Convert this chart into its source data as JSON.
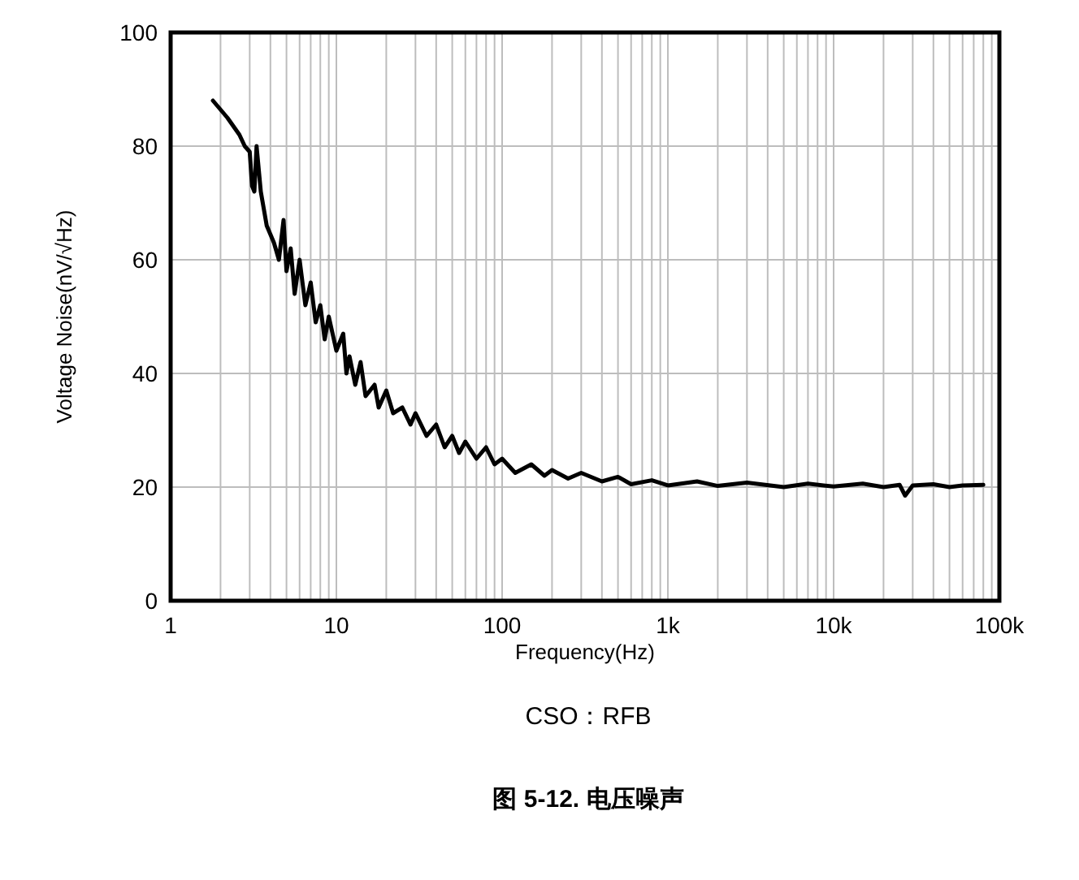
{
  "chart_data": {
    "type": "line",
    "xlabel": "Frequency(Hz)",
    "ylabel": "Voltage Noise(nV/√Hz)",
    "annotations": [
      "CSO：RFB",
      "**图 5-12. 电压噪声**"
    ],
    "log": "x",
    "grid": true,
    "marker": "none",
    "line_style": "solid",
    "xlim": [
      1,
      100000
    ],
    "ylim": [
      0,
      100
    ],
    "xticks": [
      1,
      10,
      100,
      {
        "value": 1000,
        "label": "1k"
      },
      {
        "value": 10000,
        "label": "10k"
      },
      {
        "value": 100000,
        "label": "100k"
      }
    ],
    "yticks": [
      0,
      20,
      40,
      60,
      80,
      100
    ],
    "series": [
      {
        "color": "#000000",
        "x": [
          1.8,
          2.2,
          2.6,
          2.8,
          3.0,
          3.1,
          3.2,
          3.3,
          3.5,
          3.8,
          4.2,
          4.5,
          4.8,
          5,
          5.3,
          5.6,
          6,
          6.5,
          7,
          7.5,
          8,
          8.5,
          9,
          10,
          11,
          11.5,
          12,
          13,
          14,
          15,
          17,
          18,
          20,
          22,
          25,
          28,
          30,
          35,
          40,
          45,
          50,
          55,
          60,
          70,
          80,
          90,
          100,
          120,
          150,
          180,
          200,
          250,
          300,
          400,
          500,
          600,
          800,
          1000,
          1500,
          2000,
          3000,
          5000,
          7000,
          10000,
          15000,
          20000,
          25000,
          27000,
          30000,
          40000,
          50000,
          60000,
          80000
        ],
        "values": [
          88,
          85,
          82,
          80,
          79,
          73,
          72,
          80,
          72,
          66,
          63,
          60,
          67,
          58,
          62,
          54,
          60,
          52,
          56,
          49,
          52,
          46,
          50,
          44,
          47,
          40,
          43,
          38,
          42,
          36,
          38,
          34,
          37,
          33,
          34,
          31,
          33,
          29,
          31,
          27,
          29,
          26,
          28,
          25,
          27,
          24,
          25,
          22.5,
          24,
          22,
          23,
          21.5,
          22.5,
          21,
          21.8,
          20.5,
          21.2,
          20.3,
          21,
          20.2,
          20.8,
          20,
          20.6,
          20.1,
          20.6,
          20,
          20.4,
          18.5,
          20.3,
          20.5,
          20,
          20.3,
          20.4
        ]
      }
    ]
  }
}
